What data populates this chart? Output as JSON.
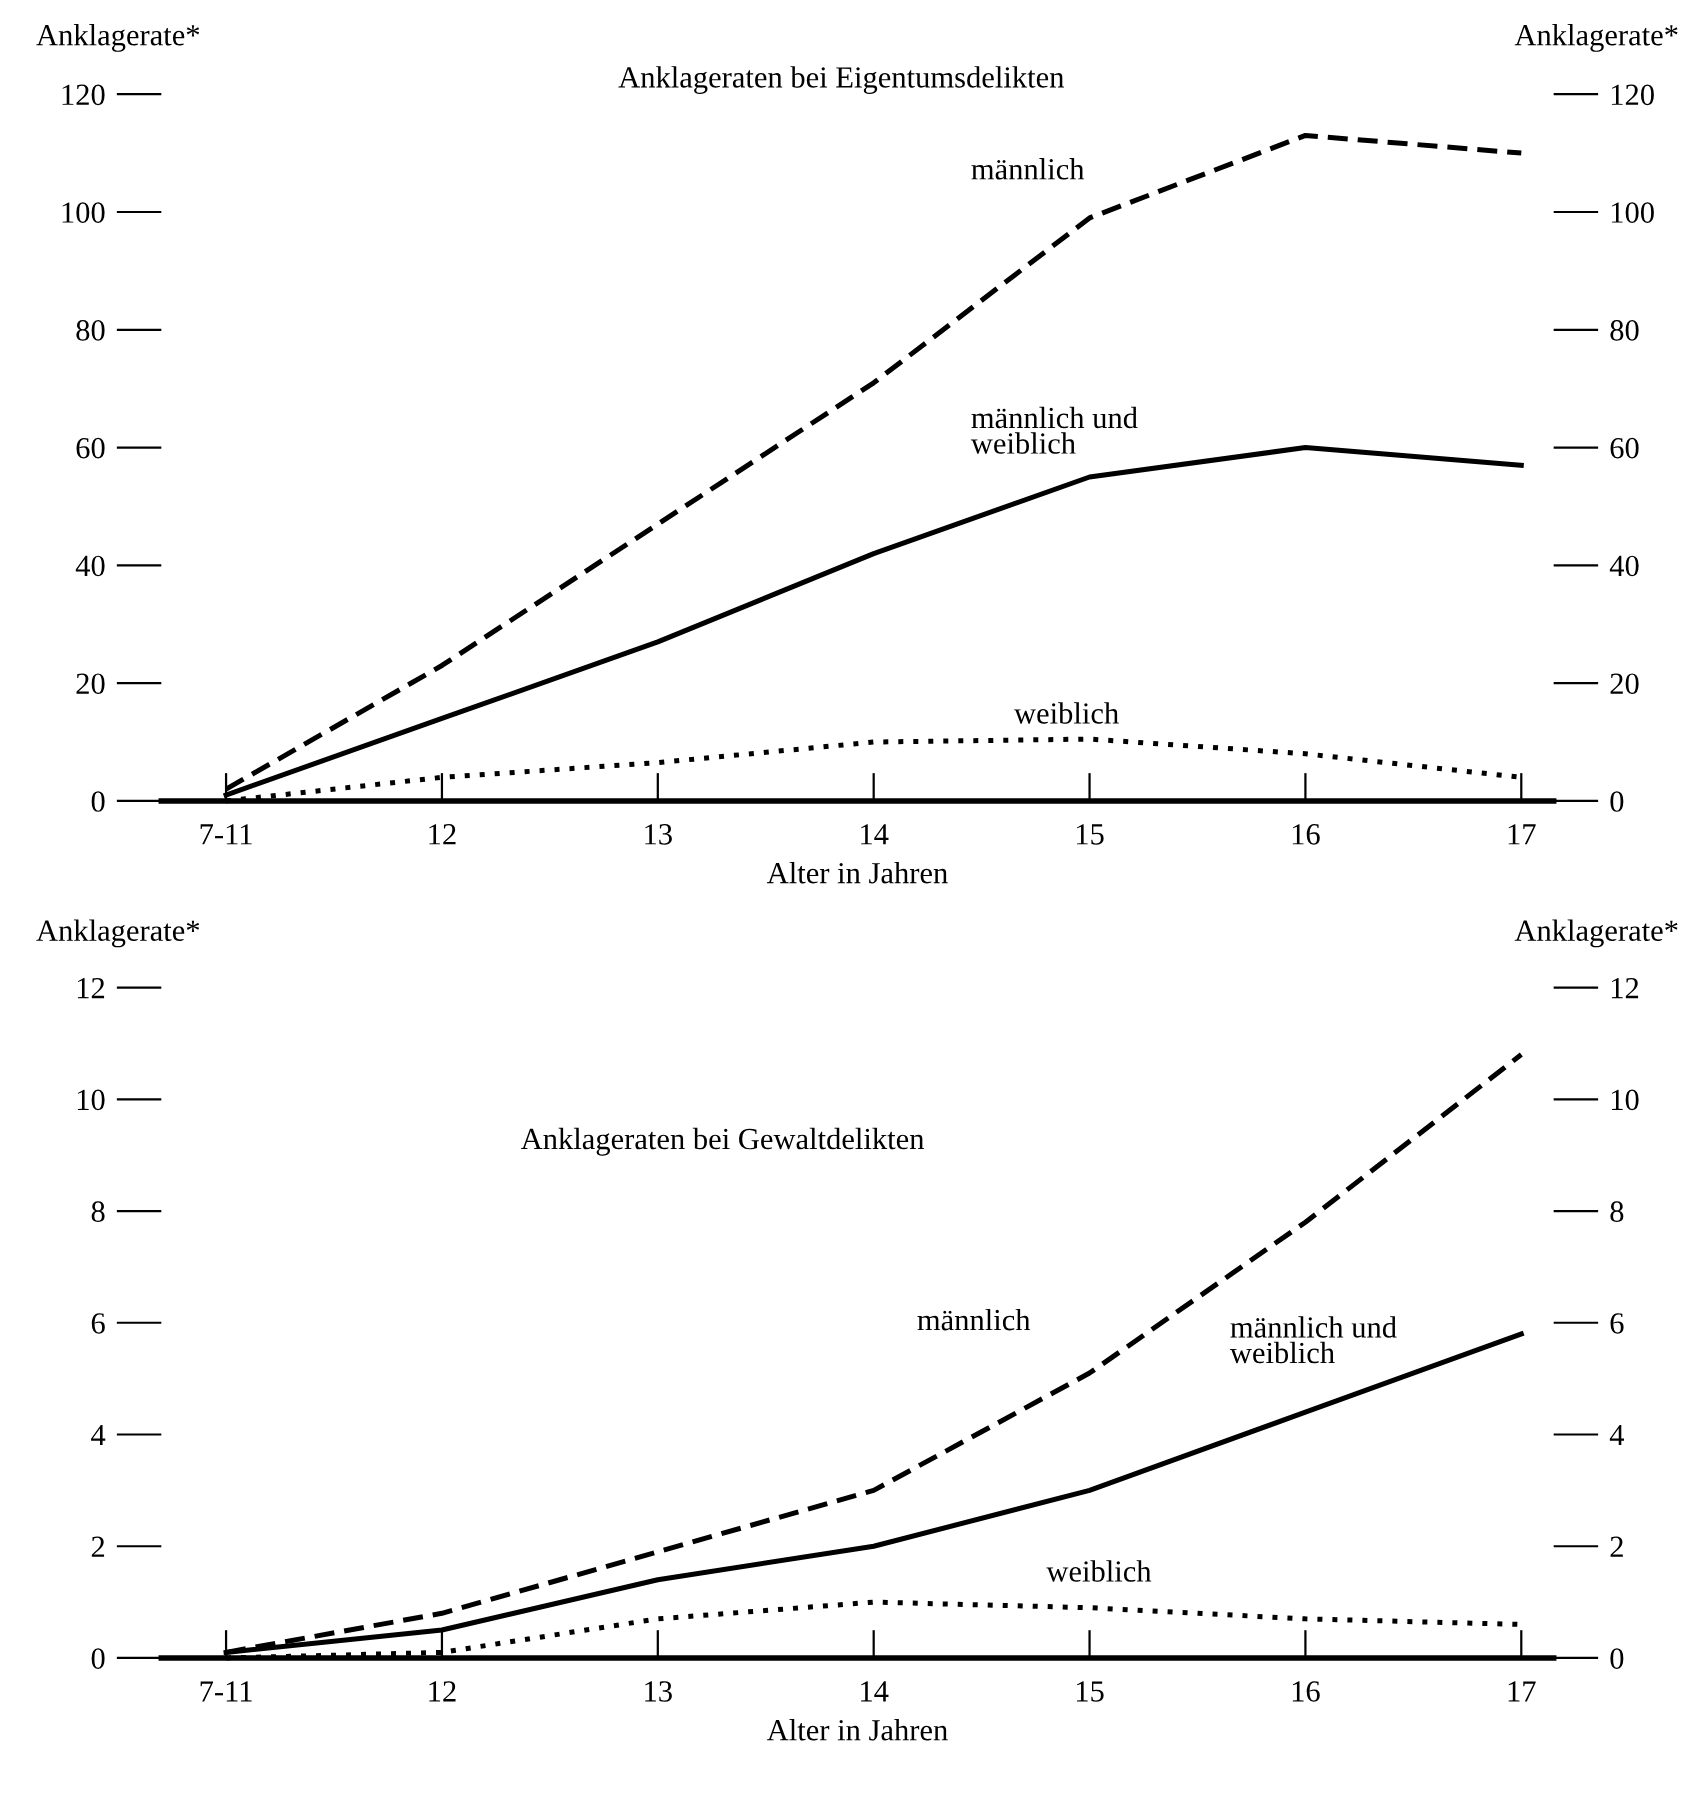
{
  "chart_data": [
    {
      "type": "line",
      "title": "Anklageraten bei Eigentumsdelikten",
      "xlabel": "Alter in Jahren",
      "ylabel": "Anklagerate*",
      "y2label": "Anklagerate*",
      "categories": [
        "7-11",
        "12",
        "13",
        "14",
        "15",
        "16",
        "17"
      ],
      "ylim": [
        0,
        120
      ],
      "yticks": [
        0,
        20,
        40,
        60,
        80,
        100,
        120
      ],
      "y2lim": [
        0,
        120
      ],
      "y2ticks": [
        0,
        20,
        40,
        60,
        80,
        100,
        120
      ],
      "grid": false,
      "legend": false,
      "marker": "none",
      "series": [
        {
          "name": "männlich",
          "color": "#000000",
          "line_style": "dashed",
          "values": [
            2,
            23,
            47,
            71,
            99,
            113,
            110
          ]
        },
        {
          "name": "männlich und\nweiblich",
          "color": "#000000",
          "line_style": "solid",
          "values": [
            1,
            14,
            27,
            42,
            55,
            60,
            57
          ]
        },
        {
          "name": "weiblich",
          "color": "#000000",
          "line_style": "dotted",
          "values": [
            0,
            4,
            6.5,
            10,
            10.5,
            8,
            4
          ]
        }
      ]
    },
    {
      "type": "line",
      "title": "Anklageraten bei Gewaltdelikten",
      "xlabel": "Alter in Jahren",
      "ylabel": "Anklagerate*",
      "y2label": "Anklagerate*",
      "categories": [
        "7-11",
        "12",
        "13",
        "14",
        "15",
        "16",
        "17"
      ],
      "ylim": [
        0,
        12
      ],
      "yticks": [
        0,
        2,
        4,
        6,
        8,
        10,
        12
      ],
      "y2lim": [
        0,
        12
      ],
      "y2ticks": [
        0,
        2,
        4,
        6,
        8,
        10,
        12
      ],
      "grid": false,
      "legend": false,
      "marker": "none",
      "series": [
        {
          "name": "männlich",
          "color": "#000000",
          "line_style": "dashed",
          "values": [
            0.1,
            0.8,
            1.9,
            3.0,
            5.1,
            7.8,
            10.8
          ]
        },
        {
          "name": "männlich und\nweiblich",
          "color": "#000000",
          "line_style": "solid",
          "values": [
            0.1,
            0.5,
            1.4,
            2.0,
            3.0,
            4.4,
            5.8
          ]
        },
        {
          "name": "weiblich",
          "color": "#000000",
          "line_style": "dotted",
          "values": [
            0,
            0.1,
            0.7,
            1.0,
            0.9,
            0.7,
            0.6
          ]
        }
      ]
    }
  ]
}
